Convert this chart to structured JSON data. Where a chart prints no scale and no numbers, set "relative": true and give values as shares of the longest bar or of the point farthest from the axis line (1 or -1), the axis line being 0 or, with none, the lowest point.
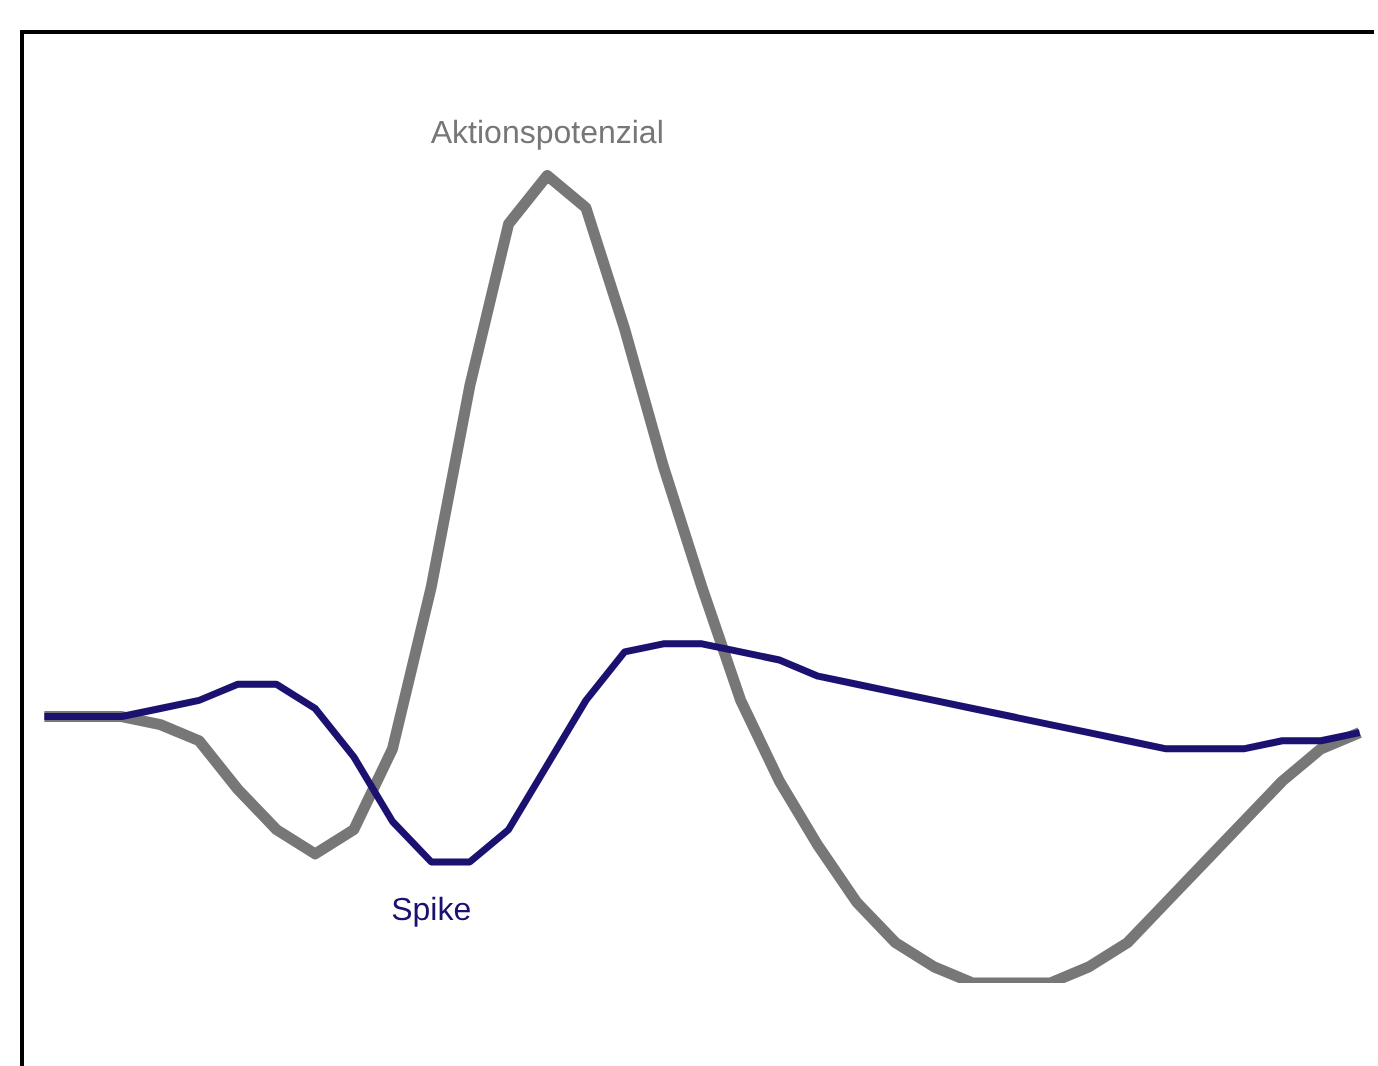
{
  "chart_data": {
    "type": "line",
    "relative": true,
    "categories": [
      null,
      null,
      null,
      null,
      null,
      null,
      null,
      null,
      null,
      null,
      null,
      null,
      null,
      null,
      null,
      null,
      null,
      null,
      null,
      null,
      null,
      null,
      null,
      null,
      null,
      null,
      null,
      null,
      null,
      null,
      null,
      null,
      null,
      null,
      null
    ],
    "series": [
      {
        "name": "Aktionspotenzial",
        "color": "#777777",
        "values": [
          0.33,
          0.33,
          0.33,
          0.32,
          0.3,
          0.24,
          0.19,
          0.16,
          0.19,
          0.29,
          0.49,
          0.74,
          0.94,
          1,
          0.96,
          0.81,
          0.64,
          0.49,
          0.35,
          0.25,
          0.17,
          0.1,
          0.05,
          0.02,
          0.0,
          0,
          0.0,
          0.02,
          0.05,
          0.1,
          0.15,
          0.2,
          0.25,
          0.29,
          0.31
        ]
      },
      {
        "name": "Spike",
        "color": "#1a1170",
        "values": [
          0.33,
          0.33,
          0.33,
          0.34,
          0.35,
          0.37,
          0.37,
          0.34,
          0.28,
          0.2,
          0.15,
          0.15,
          0.19,
          0.27,
          0.35,
          0.41,
          0.42,
          0.42,
          0.41,
          0.4,
          0.38,
          0.37,
          0.36,
          0.35,
          0.34,
          0.33,
          0.32,
          0.31,
          0.3,
          0.29,
          0.29,
          0.29,
          0.3,
          0.3,
          0.31
        ]
      }
    ],
    "legend": false,
    "grid": false,
    "line_style": "solid",
    "marker": "none"
  }
}
